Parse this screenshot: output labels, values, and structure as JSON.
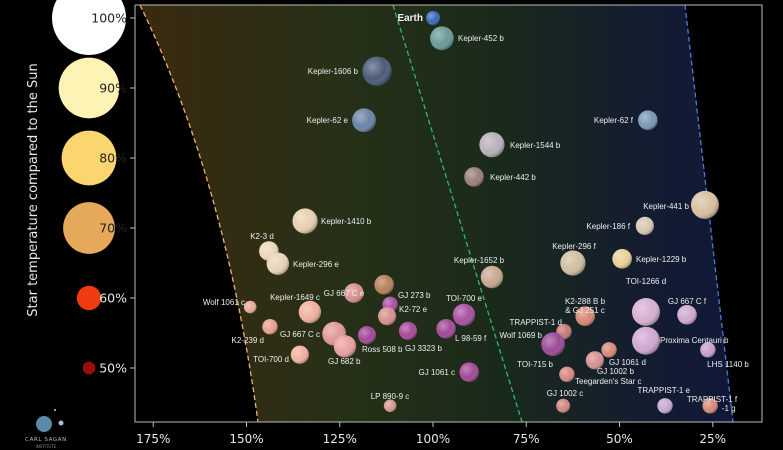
{
  "chart_data": {
    "type": "scatter",
    "xlabel": "",
    "ylabel": "Star temperature compared to the Sun",
    "x_ticks": [
      "175%",
      "150%",
      "125%",
      "100%",
      "75%",
      "50%",
      "25%"
    ],
    "x_tick_values": [
      175,
      150,
      125,
      100,
      75,
      50,
      25
    ],
    "xlim": [
      180,
      15
    ],
    "x_reversed": true,
    "y_ticks": [
      "100%",
      "90%",
      "80%",
      "70%",
      "60%",
      "50%"
    ],
    "y_tick_values": [
      100,
      90,
      80,
      70,
      60,
      50
    ],
    "ylim": [
      42,
      102
    ],
    "grid": false,
    "legend_star_colors": [
      "#ffffff",
      "#fdf3b4",
      "#fbd66f",
      "#e6a85a",
      "#f23a10",
      "#9b0e08"
    ],
    "legend_star_sizes_relative": [
      1.0,
      0.82,
      0.74,
      0.7,
      0.33,
      0.17
    ],
    "zone_colors": {
      "hot_edge": "#f0b070",
      "mid_line": "#2fb870",
      "cold_edge": "#4a7ad8"
    },
    "planets": [
      {
        "name": "Earth",
        "flux": 100,
        "temp": 100,
        "size": 1.0,
        "color": "#3a6ab8",
        "label": "left",
        "bold": true
      },
      {
        "name": "Kepler-452 b",
        "flux": 97.6,
        "temp": 97.1,
        "size": 1.7,
        "color": "#6a9a98",
        "label": "right"
      },
      {
        "name": "Kepler-1606 b",
        "flux": 115,
        "temp": 92.4,
        "size": 2.1,
        "color": "#4a5a78",
        "label": "left"
      },
      {
        "name": "Kepler-62 e",
        "flux": 118.5,
        "temp": 85.4,
        "size": 1.7,
        "color": "#6a84a8",
        "label": "left"
      },
      {
        "name": "Kepler-62 f",
        "flux": 42.4,
        "temp": 85.4,
        "size": 1.4,
        "color": "#7a98b8",
        "label": "left"
      },
      {
        "name": "Kepler-1544 b",
        "flux": 84.2,
        "temp": 81.9,
        "size": 1.8,
        "color": "#b8b0b8",
        "label": "right"
      },
      {
        "name": "Kepler-442 b",
        "flux": 89,
        "temp": 77.3,
        "size": 1.4,
        "color": "#9a8078",
        "label": "right"
      },
      {
        "name": "Kepler-441 b",
        "flux": 27.1,
        "temp": 73.3,
        "size": 2.0,
        "color": "#d8c0a0",
        "label": "left"
      },
      {
        "name": "Kepler-1410 b",
        "flux": 134.3,
        "temp": 71,
        "size": 1.8,
        "color": "#e8d0b0",
        "label": "right"
      },
      {
        "name": "Kepler-186 f",
        "flux": 43.2,
        "temp": 70.3,
        "size": 1.3,
        "color": "#d8c8b0",
        "label": "left"
      },
      {
        "name": "K2-3 d",
        "flux": 144,
        "temp": 66.7,
        "size": 1.4,
        "color": "#ecd8b8",
        "label": "above-left"
      },
      {
        "name": "Kepler-296 e",
        "flux": 141.6,
        "temp": 64.9,
        "size": 1.6,
        "color": "#e8d4b8",
        "label": "right"
      },
      {
        "name": "Kepler-296 f",
        "flux": 62.5,
        "temp": 65,
        "size": 1.8,
        "color": "#cfc0a0",
        "label": "above"
      },
      {
        "name": "Kepler-1229 b",
        "flux": 49.3,
        "temp": 65.6,
        "size": 1.4,
        "color": "#e8d098",
        "label": "right"
      },
      {
        "name": "Kepler-1652 b",
        "flux": 84.2,
        "temp": 63,
        "size": 1.6,
        "color": "#c8a890",
        "label": "above-left"
      },
      {
        "name": "TOI-1266 d",
        "flux": 113.1,
        "temp": 61.9,
        "size": 1.4,
        "color": "#b8805a",
        "label": "above"
      },
      {
        "name": "K2-288 B b\n& GJ 251 c",
        "flux": 42.9,
        "temp": 58,
        "size": 2.0,
        "color": "#d8b0d0",
        "label": "above"
      },
      {
        "name": "GJ 667 C f",
        "flux": 59.2,
        "temp": 57.4,
        "size": 1.4,
        "color": "#d88878",
        "label": "above"
      },
      {
        "name": "GJ 667 C e",
        "flux": 31.9,
        "temp": 57.6,
        "size": 1.4,
        "color": "#d0a8d0",
        "label": "above"
      },
      {
        "name": "GJ 273 b",
        "flux": 121.2,
        "temp": 60.7,
        "size": 1.4,
        "color": "#d89090",
        "label": "above"
      },
      {
        "name": "K2-72 e",
        "flux": 111.5,
        "temp": 59.1,
        "size": 1.1,
        "color": "#a850a8",
        "label": "above-right"
      },
      {
        "name": "Kepler-1649 c",
        "flux": 112.3,
        "temp": 57.4,
        "size": 1.3,
        "color": "#d89090",
        "label": "right"
      },
      {
        "name": "Wolf 1061 c",
        "flux": 133,
        "temp": 58,
        "size": 1.6,
        "color": "#f0b0a0",
        "label": "above"
      },
      {
        "name": "K2-239 d",
        "flux": 149,
        "temp": 58.7,
        "size": 0.9,
        "color": "#e8a898",
        "label": "left"
      },
      {
        "name": "TOI-700 e",
        "flux": 143.7,
        "temp": 55.9,
        "size": 1.1,
        "color": "#e8a090",
        "label": "left"
      },
      {
        "name": "GJ 667 C c",
        "flux": 91.7,
        "temp": 57.6,
        "size": 1.6,
        "color": "#a850a0",
        "label": "above"
      },
      {
        "name": "GJ 682 b",
        "flux": 126.5,
        "temp": 54.9,
        "size": 1.7,
        "color": "#e09898",
        "label": "left"
      },
      {
        "name": "Ross 508 b",
        "flux": 123.6,
        "temp": 53.1,
        "size": 1.6,
        "color": "#e8a0a0",
        "label": "below"
      },
      {
        "name": "GJ 3323 b",
        "flux": 117.7,
        "temp": 54.7,
        "size": 1.3,
        "color": "#a04898",
        "label": "below-right"
      },
      {
        "name": "L 98-59 f",
        "flux": 106.7,
        "temp": 55.3,
        "size": 1.3,
        "color": "#a84898",
        "label": "below"
      },
      {
        "name": "TOI-700 d",
        "flux": 96.5,
        "temp": 55.6,
        "size": 1.4,
        "color": "#a04898",
        "label": "below-right"
      },
      {
        "name": "GJ 1061 c",
        "flux": 135.7,
        "temp": 51.9,
        "size": 1.3,
        "color": "#f0b0a0",
        "label": "left"
      },
      {
        "name": "LP 890-9 c",
        "flux": 90.3,
        "temp": 49.4,
        "size": 1.4,
        "color": "#a04898",
        "label": "left"
      },
      {
        "name": "TRAPPIST-1 d",
        "flux": 111.5,
        "temp": 44.6,
        "size": 0.9,
        "color": "#d89890",
        "label": "above"
      },
      {
        "name": "Wolf 1069 b",
        "flux": 64.9,
        "temp": 55.2,
        "size": 1.1,
        "color": "#c87878",
        "label": "above-left"
      },
      {
        "name": "TOI-715 b",
        "flux": 67.8,
        "temp": 53.4,
        "size": 1.7,
        "color": "#9a4a98",
        "label": "left"
      },
      {
        "name": "GJ 1002 b",
        "flux": 64.1,
        "temp": 49.1,
        "size": 1.1,
        "color": "#d88880",
        "label": "left"
      },
      {
        "name": "GJ 1061 d",
        "flux": 56.6,
        "temp": 51.1,
        "size": 1.3,
        "color": "#d89090",
        "label": "below-right"
      },
      {
        "name": "Teegarden's Star c",
        "flux": 52.8,
        "temp": 52.6,
        "size": 1.1,
        "color": "#d88878",
        "label": "below-right"
      },
      {
        "name": "Proxima Centauri b",
        "flux": 65,
        "temp": 49,
        "size": 0,
        "color": "#d88878",
        "label": "below-right"
      },
      {
        "name": "LHS 1140 b",
        "flux": 42.9,
        "temp": 53.9,
        "size": 2.0,
        "color": "#d0a8d0",
        "label": "right"
      },
      {
        "name": "GJ 1002 c",
        "flux": 26.3,
        "temp": 52.6,
        "size": 1.1,
        "color": "#c8a0d0",
        "label": "below"
      },
      {
        "name": "TRAPPIST-1 e",
        "flux": 65.1,
        "temp": 44.6,
        "size": 1.0,
        "color": "#d08880",
        "label": "above"
      },
      {
        "name": "TRAPPIST-1 f",
        "flux": 37.8,
        "temp": 44.6,
        "size": 1.1,
        "color": "#c8a8d0",
        "label": "above-left"
      },
      {
        "name": "-1 g",
        "flux": 25.7,
        "temp": 44.6,
        "size": 1.1,
        "color": "#d88878",
        "label": "above"
      }
    ]
  },
  "logo": {
    "line1": "CARL SAGAN",
    "line2": "INSTITUTE"
  }
}
